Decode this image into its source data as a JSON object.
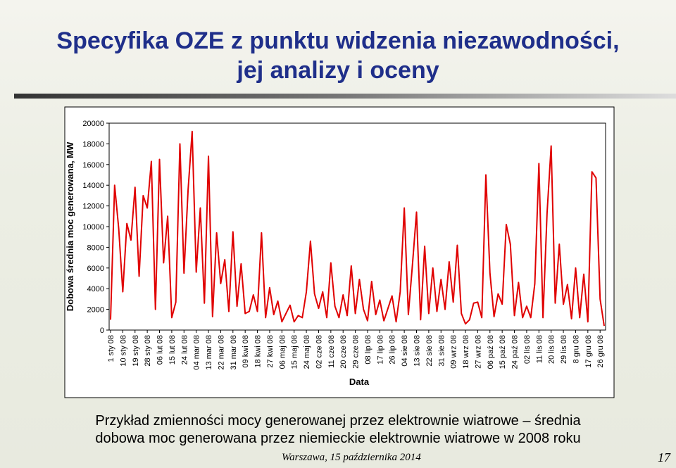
{
  "slide": {
    "title_line1": "Specyfika OZE z punktu widzenia niezawodności,",
    "title_line2": "jej analizy i oceny",
    "caption_line1": "Przykład zmienności mocy generowanej przez elektrownie wiatrowe – średnia",
    "caption_line2": "dobowa moc generowana przez niemieckie elektrownie wiatrowe w 2008 roku",
    "footer": "Warszawa, 15 października 2014",
    "page_number": "17"
  },
  "chart_data": {
    "type": "line",
    "x_label": "Data",
    "y_label": "Dobowa średnia moc generowana, MW",
    "ylim": [
      0,
      20000
    ],
    "yticks": [
      0,
      2000,
      4000,
      6000,
      8000,
      10000,
      12000,
      14000,
      16000,
      18000,
      20000
    ],
    "categories": [
      "1 sty 08",
      null,
      null,
      "10 sty 08",
      null,
      null,
      "19 sty 08",
      null,
      null,
      "28 sty 08",
      null,
      null,
      "06 lut 08",
      null,
      null,
      "15 lut 08",
      null,
      null,
      "24 lut 08",
      null,
      null,
      "04 mar 08",
      null,
      null,
      "13 mar 08",
      null,
      null,
      "22 mar 08",
      null,
      null,
      "31 mar 08",
      null,
      null,
      "09 kwi 08",
      null,
      null,
      "18 kwi 08",
      null,
      null,
      "27 kwi 08",
      null,
      null,
      "06 maj 08",
      null,
      null,
      "15 maj 08",
      null,
      null,
      "24 maj 08",
      null,
      null,
      "02 cze 08",
      null,
      null,
      "11 cze 08",
      null,
      null,
      "20 cze 08",
      null,
      null,
      "29 cze 08",
      null,
      null,
      "08 lip 08",
      null,
      null,
      "17 lip 08",
      null,
      null,
      "26 lip 08",
      null,
      null,
      "04 sie 08",
      null,
      null,
      "13 sie 08",
      null,
      null,
      "22 sie 08",
      null,
      null,
      "31 sie 08",
      null,
      null,
      "09 wrz 08",
      null,
      null,
      "18 wrz 08",
      null,
      null,
      "27 wrz 08",
      null,
      null,
      "06 paź 08",
      null,
      null,
      "15 paź 08",
      null,
      null,
      "24 paź 08",
      null,
      null,
      "02 lis 08",
      null,
      null,
      "11 lis 08",
      null,
      null,
      "20 lis 08",
      null,
      null,
      "29 lis 08",
      null,
      null,
      "8 gru 08",
      null,
      null,
      "17 gru 08",
      null,
      null,
      "26 gru 08",
      null
    ],
    "series": [
      {
        "color": "#e00000",
        "values": [
          1000,
          14000,
          9800,
          3700,
          10300,
          8700,
          13800,
          5200,
          13000,
          11800,
          16300,
          2000,
          16500,
          6500,
          11000,
          1200,
          2700,
          18000,
          5500,
          13500,
          19200,
          5600,
          11800,
          2600,
          16800,
          1300,
          9400,
          4500,
          6800,
          1800,
          9500,
          2300,
          6400,
          1600,
          1800,
          3400,
          1800,
          9400,
          1200,
          4100,
          1500,
          2800,
          800,
          1600,
          2400,
          800,
          1400,
          1200,
          3700,
          8600,
          3500,
          2100,
          3700,
          1200,
          6500,
          2300,
          1200,
          3400,
          1400,
          6200,
          1600,
          4900,
          2000,
          900,
          4700,
          1500,
          2900,
          900,
          2100,
          3300,
          800,
          3700,
          11800,
          1500,
          6300,
          11400,
          1000,
          8100,
          1600,
          6000,
          1800,
          4900,
          2000,
          6600,
          2700,
          8200,
          1600,
          600,
          1000,
          2600,
          2700,
          1200,
          15000,
          5500,
          1300,
          3500,
          2500,
          10200,
          8300,
          1400,
          4600,
          1200,
          2300,
          1200,
          4500,
          16100,
          1200,
          11300,
          17800,
          2600,
          8300,
          2500,
          4400,
          1100,
          6000,
          1200,
          5400,
          800,
          15300,
          14700,
          3000,
          400
        ]
      }
    ]
  }
}
